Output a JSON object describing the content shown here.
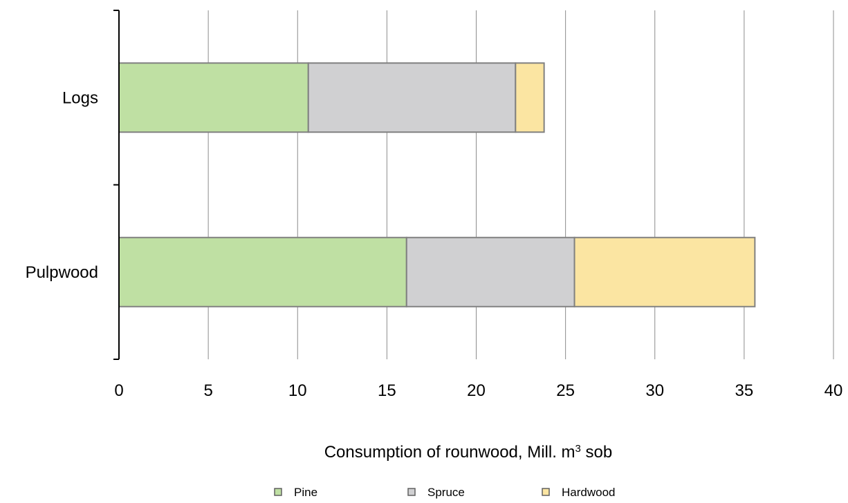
{
  "chart_data": {
    "type": "bar",
    "orientation": "horizontal",
    "stacked": true,
    "categories": [
      "Logs",
      "Pulpwood"
    ],
    "series": [
      {
        "name": "Pine",
        "values": [
          10.6,
          16.1
        ],
        "color": "#bfe0a3"
      },
      {
        "name": "Spruce",
        "values": [
          11.6,
          9.4
        ],
        "color": "#d0d0d2"
      },
      {
        "name": "Hardwood",
        "values": [
          1.6,
          10.1
        ],
        "color": "#fbe5a2"
      }
    ],
    "xlabel_text": "Consumption of rounwood, Mill. m",
    "xlabel_sup": "3",
    "xlabel_suffix": " sob",
    "xlim": [
      0,
      40
    ],
    "xticks": [
      "0",
      "5",
      "10",
      "15",
      "20",
      "25",
      "30",
      "35",
      "40"
    ],
    "grid": "vertical",
    "legend_position": "bottom",
    "bar_stroke_color": "#808080"
  }
}
